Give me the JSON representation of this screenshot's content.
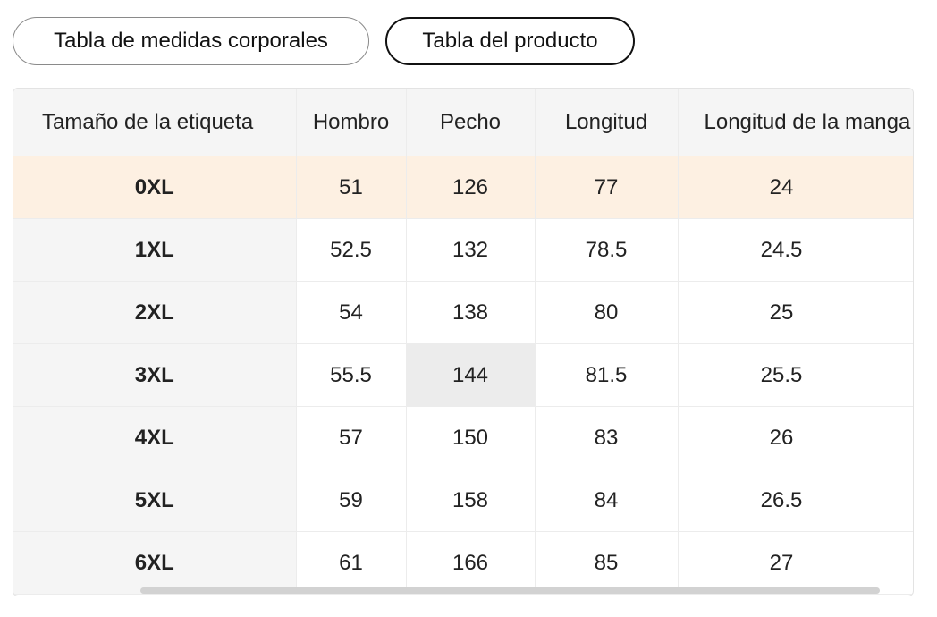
{
  "tabs": [
    {
      "label": "Tabla de medidas corporales",
      "active": false
    },
    {
      "label": "Tabla del producto",
      "active": true
    }
  ],
  "table": {
    "headers": [
      "Tamaño de la etiqueta",
      "Hombro",
      "Pecho",
      "Longitud",
      "Longitud de la manga"
    ],
    "rows": [
      [
        "0XL",
        "51",
        "126",
        "77",
        "24"
      ],
      [
        "1XL",
        "52.5",
        "132",
        "78.5",
        "24.5"
      ],
      [
        "2XL",
        "54",
        "138",
        "80",
        "25"
      ],
      [
        "3XL",
        "55.5",
        "144",
        "81.5",
        "25.5"
      ],
      [
        "4XL",
        "57",
        "150",
        "83",
        "26"
      ],
      [
        "5XL",
        "59",
        "158",
        "84",
        "26.5"
      ],
      [
        "6XL",
        "61",
        "166",
        "85",
        "27"
      ]
    ],
    "highlighted_row": 0
  },
  "colors": {
    "highlight_row": "#fdf0e2",
    "header_bg": "#f5f5f5",
    "active_tab_border": "#111111"
  }
}
